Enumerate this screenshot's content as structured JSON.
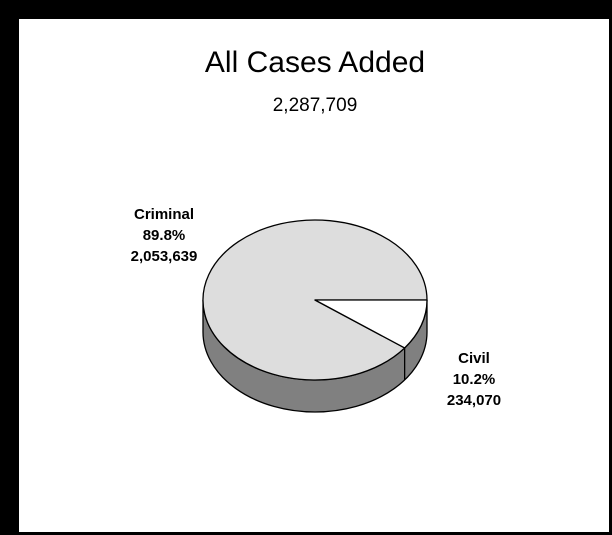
{
  "chart_data": {
    "type": "pie",
    "title": "All Cases Added",
    "subtitle": "2,287,709",
    "three_d": true,
    "slices": [
      {
        "name": "Criminal",
        "percent_label": "89.8%",
        "value_label": "2,053,639",
        "value": 2053639,
        "percent": 89.8,
        "color": "#dddddd"
      },
      {
        "name": "Civil",
        "percent_label": "10.2%",
        "value_label": "234,070",
        "value": 234070,
        "percent": 10.2,
        "color": "#ffffff"
      }
    ],
    "side_color": "#808080",
    "outline_color": "#000000",
    "border_color": "#000000",
    "background": "#ffffff"
  }
}
